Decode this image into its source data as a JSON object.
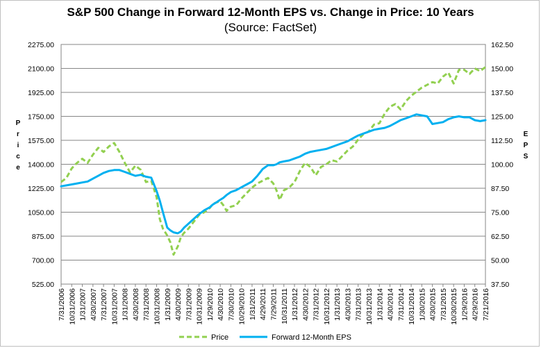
{
  "chart_data": {
    "type": "line",
    "title": "S&P 500 Change in Forward 12-Month EPS vs. Change in Price: 10 Years",
    "subtitle": "(Source: FactSet)",
    "ylabel": "Price",
    "y2label": "EPS",
    "ylim": [
      525,
      2275
    ],
    "y2lim": [
      37.5,
      162.5
    ],
    "grid": true,
    "legend_position": "bottom",
    "y_ticks": [
      "2275.00",
      "2100.00",
      "1925.00",
      "1750.00",
      "1575.00",
      "1400.00",
      "1225.00",
      "1050.00",
      "875.00",
      "700.00",
      "525.00"
    ],
    "y2_ticks": [
      "162.50",
      "150.00",
      "137.50",
      "125.00",
      "112.50",
      "100.00",
      "87.50",
      "75.00",
      "62.50",
      "50.00",
      "37.50"
    ],
    "x_ticks": [
      "7/31/2006",
      "10/31/2006",
      "1/31/2007",
      "4/30/2007",
      "7/31/2007",
      "10/31/2007",
      "1/31/2008",
      "4/30/2008",
      "7/31/2008",
      "10/31/2008",
      "1/31/2009",
      "4/30/2009",
      "7/31/2009",
      "10/31/2009",
      "1/29/2010",
      "4/30/2010",
      "7/30/2010",
      "10/29/2010",
      "1/31/2011",
      "4/29/2011",
      "7/29/2011",
      "10/31/2011",
      "1/31/2012",
      "4/30/2012",
      "7/31/2012",
      "10/31/2012",
      "1/31/2013",
      "4/30/2013",
      "7/31/2013",
      "10/31/2013",
      "1/31/2014",
      "4/30/2014",
      "7/31/2014",
      "10/31/2014",
      "1/30/2015",
      "4/30/2015",
      "7/31/2015",
      "10/30/2015",
      "1/29/2016",
      "4/29/2016",
      "7/21/2016"
    ],
    "series": [
      {
        "name": "Price",
        "axis": "left",
        "color": "#92d050",
        "style": "dashed",
        "x": [
          0,
          0.5,
          1,
          1.5,
          2,
          2.5,
          3,
          3.5,
          4,
          4.5,
          5,
          5.5,
          6,
          6.5,
          7,
          7.5,
          8,
          8.5,
          9,
          9.3,
          9.6,
          10,
          10.3,
          10.6,
          11,
          11.3,
          11.6,
          12,
          12.5,
          13,
          13.5,
          14,
          14.3,
          14.6,
          15,
          15.3,
          15.6,
          16,
          16.5,
          17,
          17.5,
          18,
          18.5,
          19,
          19.5,
          20,
          20.3,
          20.6,
          21,
          21.5,
          22,
          22.5,
          23,
          23.5,
          24,
          24.5,
          25,
          25.5,
          26,
          26.5,
          27,
          27.5,
          28,
          28.5,
          29,
          29.5,
          30,
          30.5,
          31,
          31.5,
          32,
          32.5,
          33,
          33.5,
          34,
          34.5,
          35,
          35.5,
          36,
          36.5,
          37,
          37.5,
          38,
          38.5,
          39,
          39.5,
          40
        ],
        "values": [
          1270,
          1300,
          1370,
          1410,
          1440,
          1410,
          1470,
          1520,
          1490,
          1530,
          1555,
          1490,
          1410,
          1340,
          1390,
          1360,
          1270,
          1280,
          1160,
          1000,
          930,
          880,
          830,
          740,
          800,
          870,
          900,
          930,
          980,
          1030,
          1050,
          1080,
          1110,
          1120,
          1130,
          1100,
          1060,
          1090,
          1100,
          1150,
          1190,
          1230,
          1260,
          1280,
          1300,
          1260,
          1210,
          1140,
          1210,
          1230,
          1270,
          1350,
          1410,
          1380,
          1320,
          1380,
          1400,
          1430,
          1420,
          1460,
          1500,
          1530,
          1580,
          1620,
          1640,
          1690,
          1700,
          1770,
          1820,
          1840,
          1800,
          1860,
          1900,
          1930,
          1960,
          1980,
          2000,
          1990,
          2040,
          2070,
          1990,
          2090,
          2090,
          2060,
          2100,
          2080,
          2110
        ]
      },
      {
        "name": "Forward 12-Month EPS",
        "axis": "right",
        "color": "#00b0f0",
        "style": "solid",
        "x": [
          0,
          0.5,
          1,
          1.5,
          2,
          2.5,
          3,
          3.5,
          4,
          4.5,
          5,
          5.5,
          6,
          6.5,
          7,
          7.5,
          8,
          8.5,
          9,
          9.3,
          9.6,
          10,
          10.3,
          10.6,
          11,
          11.3,
          11.6,
          12,
          12.5,
          13,
          13.5,
          14,
          14.3,
          14.6,
          15,
          15.3,
          15.6,
          16,
          16.5,
          17,
          17.5,
          18,
          18.5,
          19,
          19.5,
          20,
          20.3,
          20.6,
          21,
          21.5,
          22,
          22.5,
          23,
          23.5,
          24,
          24.5,
          25,
          25.5,
          26,
          26.5,
          27,
          27.5,
          28,
          28.5,
          29,
          29.5,
          30,
          30.5,
          31,
          31.5,
          32,
          32.5,
          33,
          33.5,
          34,
          34.5,
          35,
          35.5,
          36,
          36.5,
          37,
          37.5,
          38,
          38.5,
          39,
          39.5,
          40
        ],
        "values": [
          88.5,
          89,
          89.5,
          90,
          90.5,
          91,
          92.5,
          94,
          95.5,
          96.5,
          97,
          97,
          96,
          95,
          94,
          94.5,
          93.5,
          93,
          86,
          81,
          75,
          67,
          65.5,
          64.5,
          64,
          65,
          67,
          69,
          71.5,
          74,
          76,
          77.5,
          79,
          80,
          81.5,
          82.5,
          84,
          85.5,
          86.5,
          88,
          89.5,
          91,
          94,
          97.5,
          99.5,
          99.5,
          100,
          101,
          101.5,
          102,
          103,
          104,
          105.5,
          106.5,
          107,
          107.5,
          108,
          109,
          110,
          111,
          112,
          113.5,
          115,
          116,
          117,
          118,
          118.5,
          119,
          120,
          121.5,
          123,
          124,
          125,
          126,
          125.5,
          125,
          121,
          121.5,
          122,
          123.5,
          124.5,
          125,
          124.5,
          124.5,
          123,
          122.5,
          123
        ]
      }
    ]
  },
  "legend": {
    "price_label": "Price",
    "eps_label": "Forward 12-Month EPS"
  }
}
